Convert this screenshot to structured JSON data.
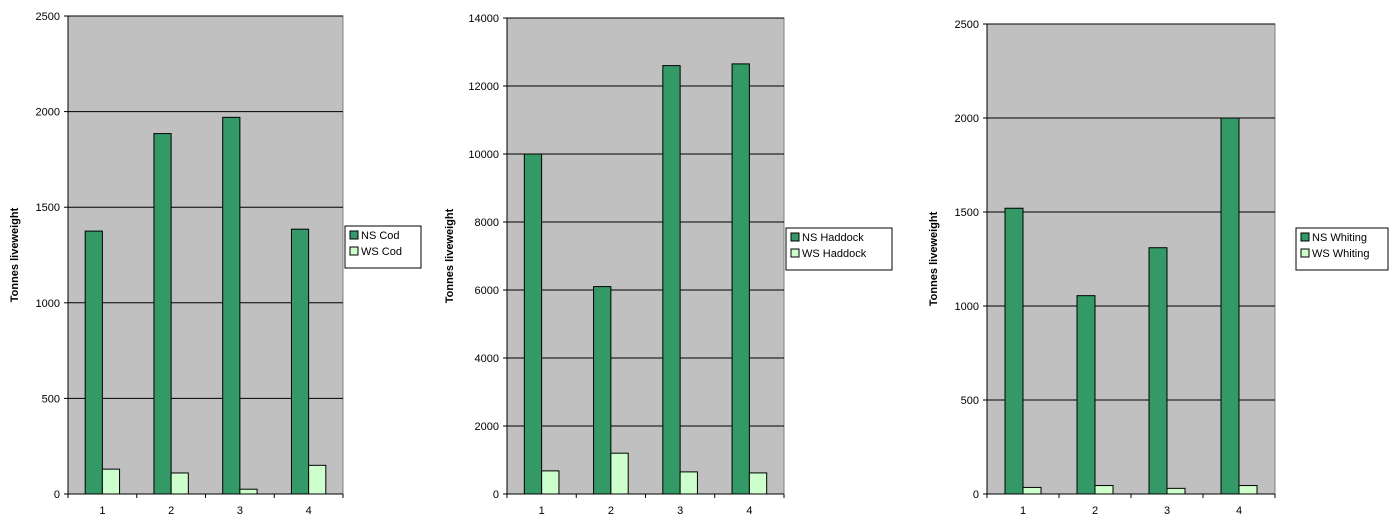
{
  "chart_data": [
    {
      "type": "bar",
      "categories": [
        "1",
        "2",
        "3",
        "4"
      ],
      "series": [
        {
          "name": "NS Cod",
          "values": [
            1375,
            1885,
            1970,
            1385
          ],
          "color": "#339966"
        },
        {
          "name": "WS Cod",
          "values": [
            130,
            110,
            25,
            150
          ],
          "color": "#ccffcc"
        }
      ],
      "ylabel": "Tonnes liveweight",
      "ylim": [
        0,
        2500
      ],
      "yticks": [
        0,
        500,
        1000,
        1500,
        2000,
        2500
      ],
      "grid": true,
      "legend_position": "right",
      "plot_background": "#c0c0c0"
    },
    {
      "type": "bar",
      "categories": [
        "1",
        "2",
        "3",
        "4"
      ],
      "series": [
        {
          "name": "NS Haddock",
          "values": [
            10000,
            6100,
            12600,
            12650
          ],
          "color": "#339966"
        },
        {
          "name": "WS Haddock",
          "values": [
            680,
            1200,
            650,
            620
          ],
          "color": "#ccffcc"
        }
      ],
      "ylabel": "Tonnes liveweight",
      "ylim": [
        0,
        14000
      ],
      "yticks": [
        0,
        2000,
        4000,
        6000,
        8000,
        10000,
        12000,
        14000
      ],
      "grid": true,
      "legend_position": "right",
      "plot_background": "#c0c0c0"
    },
    {
      "type": "bar",
      "categories": [
        "1",
        "2",
        "3",
        "4"
      ],
      "series": [
        {
          "name": "NS Whiting",
          "values": [
            1520,
            1055,
            1310,
            2000
          ],
          "color": "#339966"
        },
        {
          "name": "WS Whiting",
          "values": [
            35,
            45,
            30,
            45
          ],
          "color": "#ccffcc"
        }
      ],
      "ylabel": "Tonnes liveweight",
      "ylim": [
        0,
        2500
      ],
      "yticks": [
        0,
        500,
        1000,
        1500,
        2000,
        2500
      ],
      "grid": true,
      "legend_position": "right",
      "plot_background": "#c0c0c0"
    }
  ]
}
